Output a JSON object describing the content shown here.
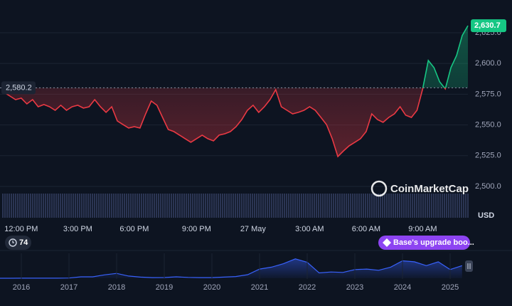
{
  "chart_data": [
    {
      "type": "line",
      "categories": [
        null,
        null,
        null,
        "12:00 PM",
        null,
        null,
        null,
        null,
        null,
        null,
        null,
        null,
        null,
        "3:00 PM",
        null,
        null,
        null,
        null,
        null,
        null,
        null,
        null,
        null,
        "6:00 PM",
        null,
        null,
        null,
        null,
        null,
        null,
        null,
        null,
        null,
        null,
        "9:00 PM",
        null,
        null,
        null,
        null,
        null,
        null,
        null,
        null,
        null,
        "27 May",
        null,
        null,
        null,
        null,
        null,
        null,
        null,
        null,
        null,
        "3:00 AM",
        null,
        null,
        null,
        null,
        null,
        null,
        null,
        null,
        null,
        "6:00 AM",
        null,
        null,
        null,
        null,
        null,
        null,
        null,
        null,
        null,
        "9:00 AM",
        null,
        null,
        null,
        null,
        null,
        null,
        null,
        null
      ],
      "values": [
        2576.4,
        2573.5,
        2570.6,
        2571.8,
        2567.1,
        2570.6,
        2564.8,
        2566.6,
        2564.8,
        2561.9,
        2566.0,
        2561.9,
        2564.8,
        2566.0,
        2563.7,
        2564.8,
        2570.6,
        2564.8,
        2560.2,
        2564.8,
        2553.2,
        2550.3,
        2547.5,
        2548.6,
        2547.5,
        2559.0,
        2569.4,
        2566.0,
        2556.1,
        2546.3,
        2544.6,
        2541.7,
        2538.8,
        2535.9,
        2538.8,
        2541.7,
        2538.8,
        2537.0,
        2541.7,
        2542.8,
        2544.6,
        2548.6,
        2554.4,
        2561.9,
        2566.0,
        2560.2,
        2564.8,
        2570.6,
        2578.7,
        2564.8,
        2561.9,
        2559.0,
        2560.2,
        2561.9,
        2564.8,
        2561.9,
        2556.1,
        2550.3,
        2538.8,
        2524.3,
        2528.9,
        2533.0,
        2535.9,
        2538.8,
        2544.6,
        2559.0,
        2554.4,
        2552.1,
        2556.1,
        2559.0,
        2564.8,
        2557.9,
        2556.1,
        2561.9,
        2579.3,
        2602.4,
        2596.6,
        2585.1,
        2579.3,
        2596.6,
        2606.5,
        2622.7,
        2630.7
      ],
      "ylim": [
        2475.1,
        2651.6
      ],
      "yticks": [
        {
          "value": 2500,
          "label": "2,500.0"
        },
        {
          "value": 2525,
          "label": "2,525.0"
        },
        {
          "value": 2550,
          "label": "2,550.0"
        },
        {
          "value": 2575,
          "label": "2,575.0"
        },
        {
          "value": 2600,
          "label": "2,600.0"
        },
        {
          "value": 2625,
          "label": "2,625.0"
        }
      ],
      "baseline": {
        "value": 2580.2,
        "label": "2,580.2"
      },
      "last_price": {
        "value": 2630.7,
        "label": "2,630.7"
      },
      "unit": "USD",
      "grid": true,
      "up_color": "#16c784",
      "down_color": "#ea3943"
    },
    {
      "type": "area",
      "categories": [
        null,
        null,
        "2016",
        null,
        null,
        null,
        "2017",
        null,
        null,
        null,
        "2018",
        null,
        null,
        null,
        "2019",
        null,
        null,
        null,
        "2020",
        null,
        null,
        null,
        "2021",
        null,
        null,
        null,
        "2022",
        null,
        null,
        null,
        "2023",
        null,
        null,
        null,
        "2024",
        null,
        null,
        null,
        "2025",
        null
      ],
      "values": [
        1,
        1,
        10,
        12,
        12,
        8,
        50,
        300,
        300,
        700,
        1000,
        450,
        230,
        130,
        140,
        290,
        180,
        130,
        130,
        230,
        360,
        740,
        1900,
        2300,
        3000,
        4000,
        3300,
        1100,
        1300,
        1200,
        1800,
        1900,
        1650,
        2300,
        3600,
        3400,
        2600,
        3400,
        1800,
        2600
      ],
      "ylim": [
        0,
        5000
      ],
      "color": "#3861fb"
    }
  ],
  "controls": {
    "history_count": "74",
    "news": "Base's upgrade boo...",
    "brand": "CoinMarketCap"
  }
}
